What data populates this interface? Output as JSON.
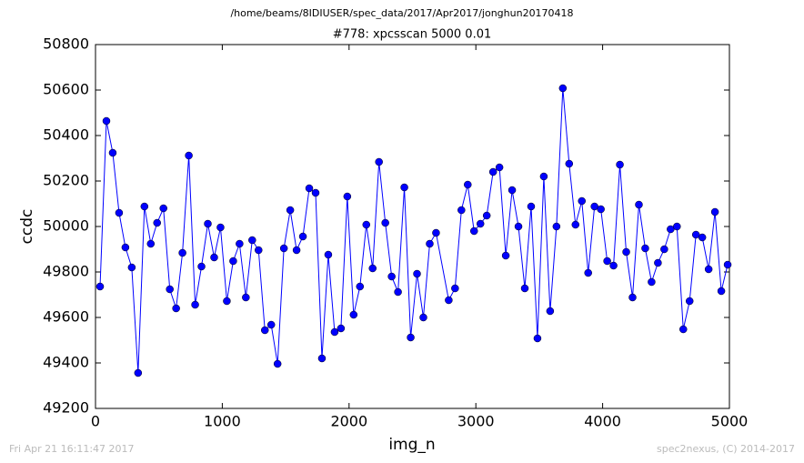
{
  "chart_data": {
    "type": "line",
    "suptitle": "/home/beams/8IDIUSER/spec_data/2017/Apr2017/jonghun20170418",
    "title": "#778: xpcsscan 5000 0.01",
    "xlabel": "img_n",
    "ylabel": "ccdc",
    "footer_left": "Fri Apr 21 16:11:47 2017",
    "footer_right": "spec2nexus, (C) 2014-2017",
    "color": "#0000ff",
    "x": [
      36,
      86,
      136,
      186,
      236,
      286,
      336,
      386,
      436,
      486,
      536,
      586,
      636,
      686,
      736,
      786,
      836,
      886,
      936,
      986,
      1036,
      1086,
      1136,
      1186,
      1236,
      1286,
      1336,
      1386,
      1436,
      1486,
      1536,
      1586,
      1636,
      1686,
      1736,
      1786,
      1836,
      1886,
      1936,
      1986,
      2036,
      2086,
      2136,
      2186,
      2236,
      2286,
      2336,
      2386,
      2436,
      2486,
      2536,
      2586,
      2636,
      2686,
      2786,
      2836,
      2886,
      2936,
      2986,
      3036,
      3086,
      3136,
      3186,
      3236,
      3286,
      3336,
      3386,
      3436,
      3486,
      3536,
      3586,
      3636,
      3686,
      3736,
      3786,
      3836,
      3886,
      3936,
      3986,
      4036,
      4086,
      4136,
      4186,
      4236,
      4286,
      4336,
      4386,
      4436,
      4486,
      4536,
      4586,
      4636,
      4686,
      4736,
      4786,
      4836,
      4886,
      4936,
      4986
    ],
    "values": [
      49736,
      50464,
      50324,
      50060,
      49908,
      49820,
      49356,
      50088,
      49924,
      50016,
      50080,
      49724,
      49640,
      49884,
      50312,
      49656,
      49824,
      50012,
      49864,
      49996,
      49672,
      49848,
      49924,
      49688,
      49940,
      49896,
      49544,
      49568,
      49396,
      49904,
      50072,
      49896,
      49956,
      50168,
      50148,
      49420,
      49876,
      49536,
      49552,
      50132,
      49612,
      49736,
      50008,
      49816,
      50284,
      50016,
      49780,
      49712,
      50172,
      49512,
      49792,
      49600,
      49924,
      49972,
      49676,
      49728,
      50072,
      50184,
      49980,
      50012,
      50048,
      50240,
      50260,
      49872,
      50160,
      50000,
      49728,
      50088,
      49508,
      50220,
      49628,
      50000,
      50608,
      50276,
      50008,
      50112,
      49796,
      50088,
      50076,
      49848,
      49828,
      50272,
      49888,
      49688,
      50096,
      49904,
      49756,
      49840,
      49900,
      49988,
      50000,
      49548,
      49672,
      49964,
      49952,
      49812,
      50064,
      49716,
      49832
    ],
    "xlim": [
      0,
      5000
    ],
    "xticks": [
      0,
      1000,
      2000,
      3000,
      4000,
      5000
    ],
    "ylim": [
      49200,
      50800
    ],
    "yticks": [
      49200,
      49400,
      49600,
      49800,
      50000,
      50200,
      50400,
      50600,
      50800
    ],
    "grid": false
  }
}
